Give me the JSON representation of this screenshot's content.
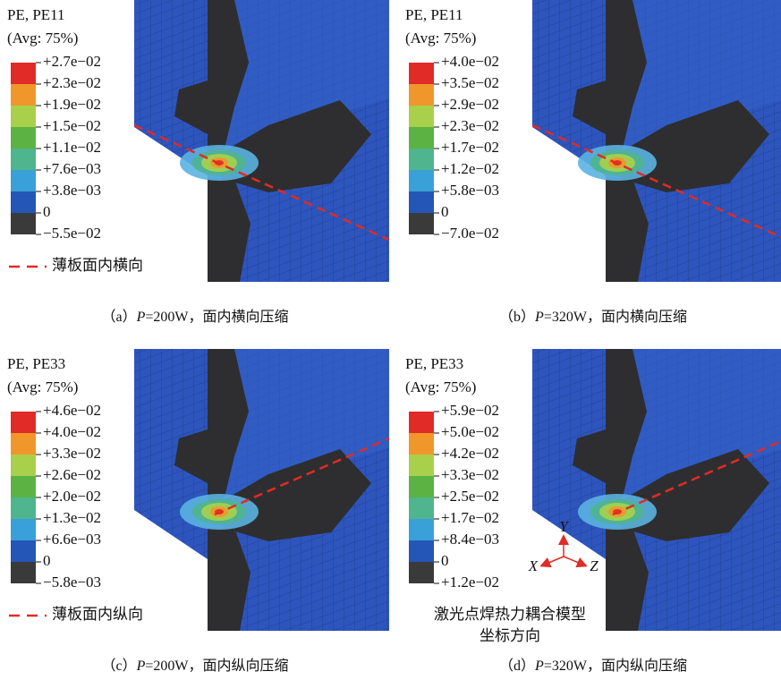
{
  "legend_colors": [
    "#e02b26",
    "#f0962a",
    "#a9d04a",
    "#5cb344",
    "#4fb58e",
    "#3aa0d8",
    "#2456b8",
    "#3a3a3a"
  ],
  "panels": [
    {
      "field": "PE, PE11",
      "avg": "(Avg: 75%)",
      "legend": [
        "+2.7e−02",
        "+2.3e−02",
        "+1.9e−02",
        "+1.5e−02",
        "+1.1e−02",
        "+7.6e−03",
        "+3.8e−03",
        "0",
        "−5.5e−02"
      ],
      "note": "薄板面内横向",
      "caption": {
        "label": "（a）",
        "var": "P",
        "text": "=200W，面内横向压缩"
      }
    },
    {
      "field": "PE, PE11",
      "avg": "(Avg: 75%)",
      "legend": [
        "+4.0e−02",
        "+3.5e−02",
        "+2.9e−02",
        "+2.3e−02",
        "+1.7e−02",
        "+1.2e−02",
        "+5.8e−03",
        "0",
        "−7.0e−02"
      ],
      "caption": {
        "label": "（b）",
        "var": "P",
        "text": "=320W，面内横向压缩"
      }
    },
    {
      "field": "PE, PE33",
      "avg": "(Avg: 75%)",
      "legend": [
        "+4.6e−02",
        "+4.0e−02",
        "+3.3e−02",
        "+2.6e−02",
        "+2.0e−02",
        "+1.3e−02",
        "+6.6e−03",
        "0",
        "−5.8e−03"
      ],
      "note": "薄板面内纵向",
      "caption": {
        "label": "（c）",
        "var": "P",
        "text": "=200W，面内纵向压缩"
      }
    },
    {
      "field": "PE, PE33",
      "avg": "(Avg: 75%)",
      "legend": [
        "+5.9e−02",
        "+5.0e−02",
        "+4.2e−02",
        "+3.3e−02",
        "+2.5e−02",
        "+1.7e−02",
        "+8.4e−03",
        "0",
        "+1.2e−02"
      ],
      "axes": {
        "y": "Y",
        "x": "X",
        "z": "Z"
      },
      "axes_note": [
        "激光点焊热力耦合模型",
        "坐标方向"
      ],
      "caption": {
        "label": "（d）",
        "var": "P",
        "text": "=320W，面内纵向压缩"
      }
    }
  ]
}
